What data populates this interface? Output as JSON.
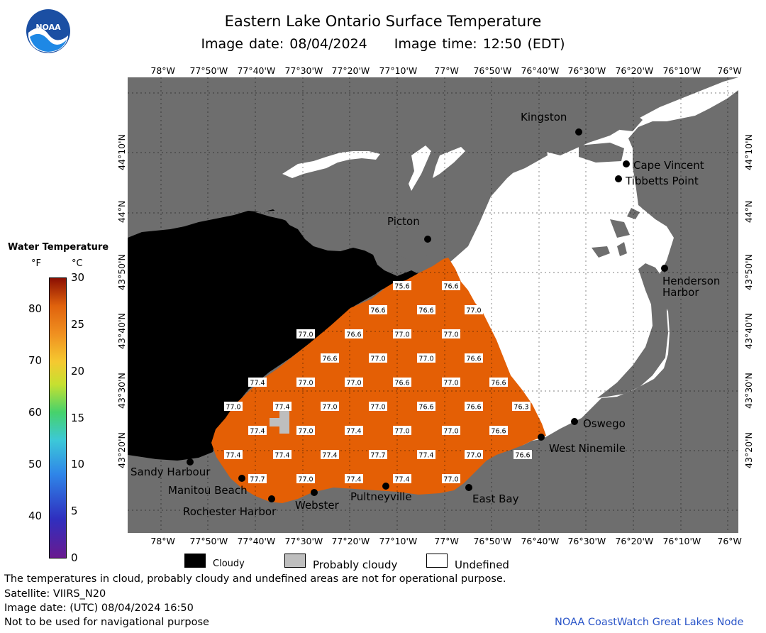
{
  "header": {
    "title": "Eastern Lake Ontario Surface Temperature",
    "image_date": "Image date: 08/04/2024",
    "image_time": "Image time: 12:50 (EDT)"
  },
  "logo": {
    "text": "NOAA"
  },
  "axes": {
    "lon_labels": [
      "78°W",
      "77°50'W",
      "77°40'W",
      "77°30'W",
      "77°20'W",
      "77°10'W",
      "77°W",
      "76°50'W",
      "76°40'W",
      "76°30'W",
      "76°20'W",
      "76°10'W",
      "76°W"
    ],
    "lat_labels": [
      "44°10'N",
      "44°N",
      "43°50'N",
      "43°40'N",
      "43°30'N",
      "43°20'N"
    ],
    "top_last_label": "76°W"
  },
  "colorbar": {
    "title": "Water Temperature",
    "unit_f": "°F",
    "unit_c": "°C",
    "f_ticks": [
      "80",
      "70",
      "60",
      "50",
      "40"
    ],
    "c_ticks": [
      "30",
      "25",
      "20",
      "15",
      "10",
      "5",
      "0"
    ],
    "colors": [
      "#2f1590",
      "#2e62e0",
      "#36b0f0",
      "#3fd6a3",
      "#6fd24f",
      "#e0e23a",
      "#f5a623",
      "#ea6a12",
      "#c53b07",
      "#8a0e02"
    ]
  },
  "map_colors": {
    "land": "#6e6e6e",
    "water_temp": "#e45f05",
    "cloudy": "#000000",
    "probably_cloudy": "#bebebe",
    "undefined": "#ffffff"
  },
  "places": [
    {
      "label": "Kingston"
    },
    {
      "label": "Cape Vincent"
    },
    {
      "label": "Tibbetts Point"
    },
    {
      "label": "Picton"
    },
    {
      "label": "Henderson Harbor",
      "lines": [
        "Henderson",
        "Harbor"
      ]
    },
    {
      "label": "Oswego"
    },
    {
      "label": "West Ninemile"
    },
    {
      "label": "Sandy Harbour"
    },
    {
      "label": "Manitou Beach"
    },
    {
      "label": "Rochester Harbor"
    },
    {
      "label": "Webster"
    },
    {
      "label": "Pultneyville"
    },
    {
      "label": "East Bay"
    }
  ],
  "temperature_rows": [
    [
      "75.6",
      "76.6"
    ],
    [
      "76.6",
      "76.6",
      "77.0"
    ],
    [
      "77.0",
      "76.6",
      "77.0",
      "77.0"
    ],
    [
      "76.6",
      "77.0",
      "77.0",
      "76.6"
    ],
    [
      "77.4",
      "77.0",
      "77.0",
      "76.6",
      "77.0",
      "76.6"
    ],
    [
      "77.0",
      "77.4",
      "77.0",
      "77.0",
      "76.6",
      "76.6",
      "76.3"
    ],
    [
      "77.4",
      "77.0",
      "77.4",
      "77.0",
      "77.0",
      "76.6"
    ],
    [
      "77.4",
      "77.4",
      "77.4",
      "77.7",
      "77.4",
      "77.0",
      "76.6"
    ],
    [
      "77.7",
      "77.0",
      "77.4",
      "77.4",
      "77.0"
    ]
  ],
  "legend": [
    {
      "label": "Cloudy",
      "color": "#000000"
    },
    {
      "label": "Probably cloudy",
      "color": "#bebebe"
    },
    {
      "label": "Undefined",
      "color": "#ffffff"
    }
  ],
  "footer": {
    "disclaimer": "The temperatures in cloud, probably cloudy and undefined areas are not for operational purpose.",
    "satellite": "Satellite: VIIRS_N20",
    "utc_date": "Image date: (UTC) 08/04/2024  16:50",
    "nav_warning": "Not to be used for navigational purpose",
    "credit": "NOAA CoastWatch Great Lakes Node"
  }
}
